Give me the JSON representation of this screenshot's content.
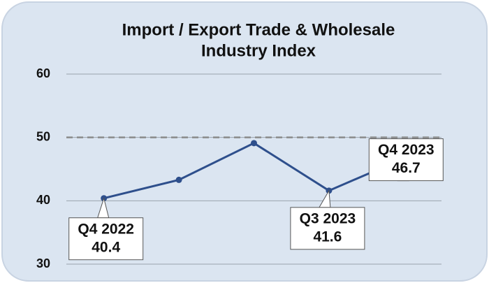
{
  "chart_data": {
    "type": "line",
    "title": [
      "Import / Export Trade & Wholesale",
      "Industry Index"
    ],
    "categories": [
      "Q4 2022",
      null,
      null,
      "Q3 2023",
      "Q4 2023"
    ],
    "series": [
      {
        "name": null,
        "color": "#2e4f8c",
        "values": [
          40.4,
          43.3,
          49.1,
          41.6,
          46.7
        ]
      }
    ],
    "ylim": [
      30,
      60
    ],
    "yticks": [
      30,
      40,
      50,
      60
    ],
    "grid": true,
    "reference_line": {
      "value": 50,
      "style": "dashed"
    }
  }
}
